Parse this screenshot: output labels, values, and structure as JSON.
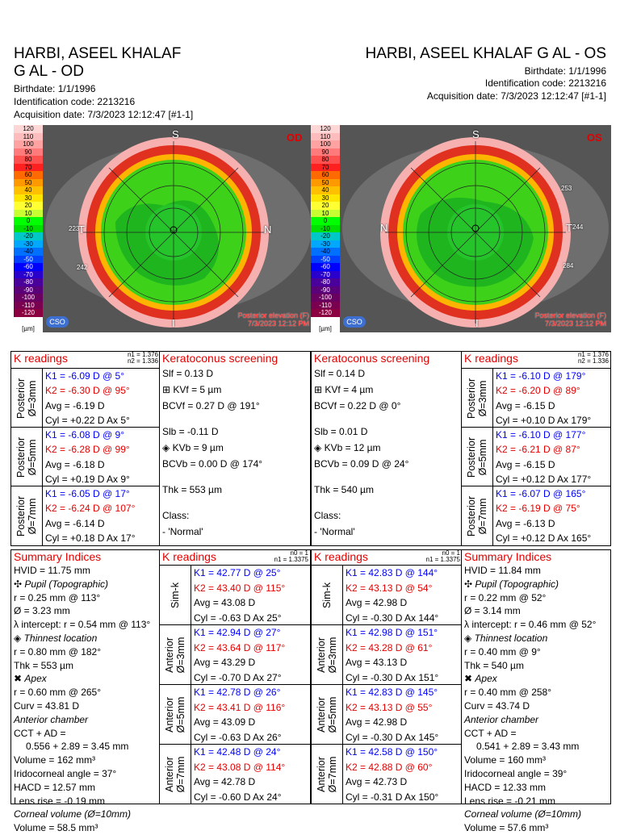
{
  "od": {
    "name_line1": "HARBI, ASEEL KHALAF",
    "name_line2": "G AL - OD",
    "birthdate": "Birthdate: 1/1/1996",
    "id_code": "Identification code: 2213216",
    "acq": "Acquisition date: 7/3/2023 12:12:47 [#1-1]",
    "map": {
      "eye_tag": "OD",
      "top_label": "S",
      "left_label": "T",
      "right_label": "N",
      "bottom_label": "I",
      "left_value": "223",
      "bottom_left_value": "242",
      "footer1": "Posterior elevation (F)",
      "footer2": "7/3/2023 12:12 PM"
    }
  },
  "os": {
    "name": "HARBI, ASEEL KHALAF G AL - OS",
    "birthdate": "Birthdate: 1/1/1996",
    "id_code": "Identification code: 2213216",
    "acq": "Acquisition date: 7/3/2023 12:12:47 [#1-1]",
    "map": {
      "eye_tag": "OS",
      "top_label": "S",
      "left_label": "N",
      "right_label": "T",
      "bottom_label": "I",
      "right_value": "244",
      "top_right_value": "253",
      "bottom_right_value": "284",
      "footer1": "Posterior elevation (F)",
      "footer2": "7/3/2023 12:12 PM"
    }
  },
  "scale": {
    "values": [
      "120",
      "110",
      "100",
      "90",
      "80",
      "70",
      "60",
      "50",
      "40",
      "30",
      "20",
      "10",
      "0",
      "-10",
      "-20",
      "-30",
      "-40",
      "-50",
      "-60",
      "-70",
      "-80",
      "-90",
      "-100",
      "-110",
      "-120"
    ],
    "unit": "[µm]",
    "colors": [
      "#ffd6d6",
      "#ffbcbc",
      "#ffa2a2",
      "#ff7a7a",
      "#ff5050",
      "#ff2020",
      "#ff6a00",
      "#ff9900",
      "#ffc000",
      "#ffe600",
      "#ffff33",
      "#c8ff33",
      "#00ff00",
      "#00e000",
      "#00c8c8",
      "#00a8ff",
      "#0070ff",
      "#0040ff",
      "#0000ff",
      "#2a00cc",
      "#4a009a",
      "#5a0078",
      "#6a0060",
      "#7a0050",
      "#8a0040"
    ]
  },
  "cso": "CSO",
  "od_k_post": {
    "title": "K readings",
    "n1": "n1 = 1.376",
    "n2": "n2 = 1.336",
    "groups": [
      {
        "label": "Posterior\nØ=3mm",
        "k1": "K1 = -6.09 D  @ 5°",
        "k2": "K2 = -6.30 D  @ 95°",
        "avg": "Avg = -6.19 D",
        "cyl": "Cyl = +0.22 D Ax 5°"
      },
      {
        "label": "Posterior\nØ=5mm",
        "k1": "K1 = -6.08 D  @ 9°",
        "k2": "K2 = -6.28 D  @ 99°",
        "avg": "Avg = -6.18 D",
        "cyl": "Cyl = +0.19 D Ax 9°"
      },
      {
        "label": "Posterior\nØ=7mm",
        "k1": "K1 = -6.05 D  @ 17°",
        "k2": "K2 = -6.24 D  @ 107°",
        "avg": "Avg = -6.14 D",
        "cyl": "Cyl = +0.18 D Ax 17°"
      }
    ]
  },
  "od_kc": {
    "title": "Keratoconus screening",
    "slf": "Slf = 0.13 D",
    "kvf": "KVf = 5 µm",
    "bcvf": "BCVf = 0.27 D @ 191°",
    "slb": "Slb = -0.11 D",
    "kvb": "KVb = 9 µm",
    "bcvb": "BCVb = 0.00 D @ 174°",
    "thk": "Thk = 553 µm",
    "class_label": "Class:",
    "class_value": "- 'Normal'"
  },
  "os_kc": {
    "title": "Keratoconus screening",
    "slf": "Slf = 0.14 D",
    "kvf": "KVf = 4 µm",
    "bcvf": "BCVf = 0.22 D @ 0°",
    "slb": "Slb = 0.01 D",
    "kvb": "KVb = 12 µm",
    "bcvb": "BCVb = 0.09 D @ 24°",
    "thk": "Thk = 540 µm",
    "class_label": "Class:",
    "class_value": "- 'Normal'"
  },
  "os_k_post": {
    "title": "K readings",
    "n1": "n1 = 1.376",
    "n2": "n2 = 1.336",
    "groups": [
      {
        "label": "Posterior\nØ=3mm",
        "k1": "K1 = -6.10 D  @ 179°",
        "k2": "K2 = -6.20 D  @ 89°",
        "avg": "Avg = -6.15 D",
        "cyl": "Cyl = +0.10 D Ax 179°"
      },
      {
        "label": "Posterior\nØ=5mm",
        "k1": "K1 = -6.10 D  @ 177°",
        "k2": "K2 = -6.21 D  @ 87°",
        "avg": "Avg = -6.15 D",
        "cyl": "Cyl = +0.12 D Ax 177°"
      },
      {
        "label": "Posterior\nØ=7mm",
        "k1": "K1 = -6.07 D  @ 165°",
        "k2": "K2 = -6.19 D  @ 75°",
        "avg": "Avg = -6.13 D",
        "cyl": "Cyl = +0.12 D Ax 165°"
      }
    ]
  },
  "od_sum": {
    "title": "Summary Indices",
    "lines": [
      "HVID = 11.75 mm",
      "Pupil (Topographic)",
      "r = 0.25 mm @ 113°",
      "Ø = 3.23 mm",
      "λ intercept: r = 0.54 mm @ 113°",
      "Thinnest location",
      "r = 0.80 mm @ 182°",
      "Thk = 553 µm",
      "Apex",
      "r = 0.60 mm @ 265°",
      "Curv = 43.81 D",
      "Anterior chamber",
      "CCT + AD =",
      "0.556 + 2.89 = 3.45 mm",
      "Volume = 162 mm³",
      "Iridocorneal angle = 37°",
      "HACD = 12.57 mm",
      "Lens rise = -0.19 mm",
      "Corneal volume (Ø=10mm)",
      "Volume = 58.5 mm³"
    ]
  },
  "os_sum": {
    "title": "Summary Indices",
    "lines": [
      "HVID = 11.84 mm",
      "Pupil (Topographic)",
      "r = 0.22 mm @ 52°",
      "Ø = 3.14 mm",
      "λ intercept: r = 0.46 mm @ 52°",
      "Thinnest location",
      "r = 0.40 mm @ 9°",
      "Thk = 540 µm",
      "Apex",
      "r = 0.40 mm @ 258°",
      "Curv = 43.74 D",
      "Anterior chamber",
      "CCT + AD =",
      "0.541 + 2.89 = 3.43 mm",
      "Volume = 160 mm³",
      "Iridocorneal angle = 39°",
      "HACD = 12.33 mm",
      "Lens rise = -0.21 mm",
      "Corneal volume (Ø=10mm)",
      "Volume = 57.6 mm³"
    ]
  },
  "od_k_ant": {
    "title": "K readings",
    "n0": "n0 = 1",
    "n1": "n1 = 1.3375",
    "groups": [
      {
        "label": "Sim-k",
        "k1": "K1 = 42.77 D  @ 25°",
        "k2": "K2 = 43.40 D  @ 115°",
        "avg": "Avg = 43.08 D",
        "cyl": "Cyl = -0.63 D Ax 25°"
      },
      {
        "label": "Anterior\nØ=3mm",
        "k1": "K1 = 42.94 D  @ 27°",
        "k2": "K2 = 43.64 D  @ 117°",
        "avg": "Avg = 43.29 D",
        "cyl": "Cyl = -0.70 D Ax 27°"
      },
      {
        "label": "Anterior\nØ=5mm",
        "k1": "K1 = 42.78 D  @ 26°",
        "k2": "K2 = 43.41 D  @ 116°",
        "avg": "Avg = 43.09 D",
        "cyl": "Cyl = -0.63 D Ax 26°"
      },
      {
        "label": "Anterior\nØ=7mm",
        "k1": "K1 = 42.48 D  @ 24°",
        "k2": "K2 = 43.08 D  @ 114°",
        "avg": "Avg = 42.78 D",
        "cyl": "Cyl = -0.60 D Ax 24°"
      }
    ]
  },
  "os_k_ant": {
    "title": "K readings",
    "n0": "n0 = 1",
    "n1": "n1 = 1.3375",
    "groups": [
      {
        "label": "Sim-k",
        "k1": "K1 = 42.83 D  @ 144°",
        "k2": "K2 = 43.13 D  @ 54°",
        "avg": "Avg = 42.98 D",
        "cyl": "Cyl = -0.30 D Ax 144°"
      },
      {
        "label": "Anterior\nØ=3mm",
        "k1": "K1 = 42.98 D  @ 151°",
        "k2": "K2 = 43.28 D  @ 61°",
        "avg": "Avg = 43.13 D",
        "cyl": "Cyl = -0.30 D Ax 151°"
      },
      {
        "label": "Anterior\nØ=5mm",
        "k1": "K1 = 42.83 D  @ 145°",
        "k2": "K2 = 43.13 D  @ 55°",
        "avg": "Avg = 42.98 D",
        "cyl": "Cyl = -0.30 D Ax 145°"
      },
      {
        "label": "Anterior\nØ=7mm",
        "k1": "K1 = 42.58 D  @ 150°",
        "k2": "K2 = 42.88 D  @ 60°",
        "avg": "Avg = 42.73 D",
        "cyl": "Cyl = -0.31 D Ax 150°"
      }
    ]
  }
}
